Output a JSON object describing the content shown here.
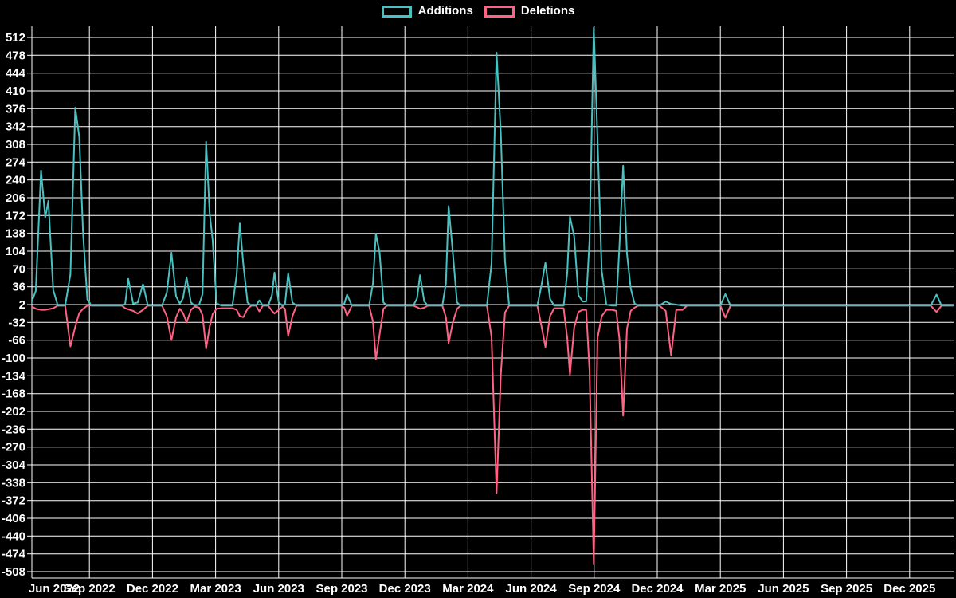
{
  "legend": {
    "items": [
      {
        "label": "Additions",
        "color": "#4bc0c0"
      },
      {
        "label": "Deletions",
        "color": "#ff6384"
      }
    ]
  },
  "chart_data": {
    "type": "line",
    "title": "",
    "legend_position": "top",
    "grid": true,
    "background": "#000000",
    "grid_color": "#ffffff",
    "text_color": "#ffffff",
    "baseline": 0,
    "x_axis": {
      "tick_labels": [
        "Jun 2022",
        "Sep 2022",
        "Dec 2022",
        "Mar 2023",
        "Jun 2023",
        "Sep 2023",
        "Dec 2023",
        "Mar 2024",
        "Jun 2024",
        "Sep 2024",
        "Dec 2024",
        "Mar 2025",
        "Jun 2025",
        "Sep 2025",
        "Dec 2025"
      ]
    },
    "y_axis": {
      "min": -508,
      "max": 512,
      "step": 34,
      "ticks": [
        512,
        478,
        444,
        410,
        376,
        342,
        308,
        274,
        240,
        206,
        172,
        138,
        104,
        70,
        36,
        2,
        -32,
        -66,
        -100,
        -134,
        -168,
        -202,
        -236,
        -270,
        -304,
        -338,
        -372,
        -406,
        -440,
        -474,
        -508
      ]
    },
    "series": [
      {
        "name": "Additions",
        "color": "#4bc0c0"
      },
      {
        "name": "Deletions",
        "color": "#ff6384"
      }
    ],
    "points_format": "[months_since_jun_2022, additions, deletions]",
    "points": [
      [
        0.19,
        0,
        0
      ],
      [
        0.45,
        28,
        -6
      ],
      [
        0.7,
        258,
        -8
      ],
      [
        0.9,
        168,
        -8
      ],
      [
        1.05,
        200,
        -7
      ],
      [
        1.28,
        30,
        -5
      ],
      [
        1.5,
        0,
        0
      ],
      [
        1.85,
        0,
        0
      ],
      [
        2.1,
        60,
        -78
      ],
      [
        2.33,
        378,
        -40
      ],
      [
        2.52,
        322,
        -14
      ],
      [
        2.7,
        137,
        -6
      ],
      [
        2.9,
        12,
        0
      ],
      [
        3.1,
        0,
        0
      ],
      [
        4.55,
        0,
        0
      ],
      [
        4.7,
        3,
        -5
      ],
      [
        4.85,
        51,
        -7
      ],
      [
        5.08,
        4,
        -10
      ],
      [
        5.3,
        6,
        -15
      ],
      [
        5.55,
        41,
        -8
      ],
      [
        5.78,
        0,
        0
      ],
      [
        6.45,
        0,
        0
      ],
      [
        6.68,
        25,
        -20
      ],
      [
        6.9,
        101,
        -66
      ],
      [
        7.12,
        18,
        -22
      ],
      [
        7.3,
        4,
        -6
      ],
      [
        7.45,
        14,
        -14
      ],
      [
        7.62,
        54,
        -32
      ],
      [
        7.83,
        6,
        -8
      ],
      [
        8.0,
        0,
        -2
      ],
      [
        8.22,
        2,
        -4
      ],
      [
        8.38,
        22,
        -18
      ],
      [
        8.55,
        313,
        -82
      ],
      [
        8.72,
        176,
        -40
      ],
      [
        8.86,
        125,
        -16
      ],
      [
        9.05,
        4,
        -6
      ],
      [
        9.3,
        0,
        -5
      ],
      [
        9.8,
        0,
        -5
      ],
      [
        10.0,
        58,
        -8
      ],
      [
        10.15,
        157,
        -20
      ],
      [
        10.32,
        79,
        -22
      ],
      [
        10.52,
        6,
        -6
      ],
      [
        10.7,
        0,
        0
      ],
      [
        10.92,
        0,
        0
      ],
      [
        11.08,
        10,
        -11
      ],
      [
        11.25,
        0,
        0
      ],
      [
        11.5,
        0,
        0
      ],
      [
        11.68,
        20,
        -10
      ],
      [
        11.8,
        63,
        -15
      ],
      [
        12.0,
        6,
        -8
      ],
      [
        12.18,
        0,
        -2
      ],
      [
        12.3,
        2,
        -6
      ],
      [
        12.45,
        62,
        -58
      ],
      [
        12.65,
        6,
        -20
      ],
      [
        12.85,
        0,
        0
      ],
      [
        14.95,
        0,
        0
      ],
      [
        15.12,
        4,
        -4
      ],
      [
        15.25,
        21,
        -19
      ],
      [
        15.48,
        0,
        0
      ],
      [
        16.3,
        0,
        0
      ],
      [
        16.48,
        42,
        -30
      ],
      [
        16.62,
        137,
        -102
      ],
      [
        16.8,
        101,
        -55
      ],
      [
        16.98,
        6,
        -6
      ],
      [
        17.15,
        0,
        0
      ],
      [
        18.4,
        0,
        0
      ],
      [
        18.58,
        14,
        -3
      ],
      [
        18.72,
        58,
        -6
      ],
      [
        18.92,
        8,
        -4
      ],
      [
        19.1,
        0,
        0
      ],
      [
        19.78,
        0,
        0
      ],
      [
        19.95,
        42,
        -22
      ],
      [
        20.08,
        190,
        -72
      ],
      [
        20.28,
        101,
        -32
      ],
      [
        20.48,
        6,
        -6
      ],
      [
        20.65,
        0,
        0
      ],
      [
        21.9,
        0,
        0
      ],
      [
        22.12,
        81,
        -60
      ],
      [
        22.36,
        483,
        -358
      ],
      [
        22.56,
        330,
        -132
      ],
      [
        22.76,
        85,
        -13
      ],
      [
        22.96,
        0,
        0
      ],
      [
        24.3,
        0,
        0
      ],
      [
        24.5,
        40,
        -40
      ],
      [
        24.68,
        82,
        -79
      ],
      [
        24.9,
        13,
        -20
      ],
      [
        25.1,
        0,
        -5
      ],
      [
        25.55,
        0,
        -5
      ],
      [
        25.72,
        62,
        -62
      ],
      [
        25.85,
        170,
        -132
      ],
      [
        26.05,
        132,
        -42
      ],
      [
        26.25,
        20,
        -12
      ],
      [
        26.45,
        8,
        -8
      ],
      [
        26.62,
        8,
        -8
      ],
      [
        26.78,
        126,
        -124
      ],
      [
        26.98,
        531,
        -493
      ],
      [
        27.16,
        320,
        -62
      ],
      [
        27.36,
        66,
        -20
      ],
      [
        27.58,
        2,
        -8
      ],
      [
        27.85,
        0,
        -8
      ],
      [
        28.05,
        0,
        -10
      ],
      [
        28.2,
        112,
        -63
      ],
      [
        28.38,
        267,
        -210
      ],
      [
        28.56,
        99,
        -44
      ],
      [
        28.74,
        33,
        -10
      ],
      [
        28.92,
        4,
        -4
      ],
      [
        29.1,
        0,
        0
      ],
      [
        30.1,
        0,
        0
      ],
      [
        30.4,
        8,
        -10
      ],
      [
        30.66,
        3,
        -95
      ],
      [
        30.9,
        2,
        -8
      ],
      [
        31.2,
        0,
        -8
      ],
      [
        31.42,
        0,
        0
      ],
      [
        33.0,
        0,
        0
      ],
      [
        33.24,
        22,
        -23
      ],
      [
        33.48,
        0,
        0
      ],
      [
        43.0,
        0,
        0
      ],
      [
        43.28,
        21,
        -12
      ],
      [
        43.52,
        0,
        0
      ],
      [
        44.1,
        0,
        0
      ]
    ]
  }
}
